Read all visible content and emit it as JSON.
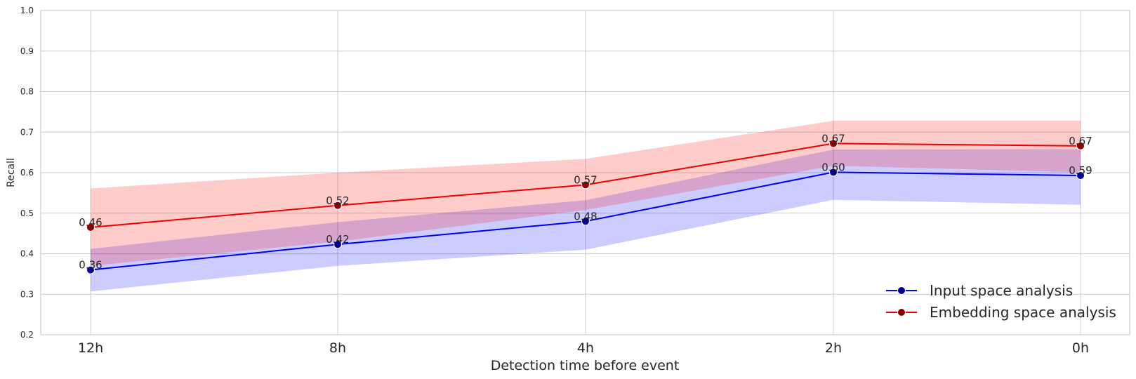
{
  "chart_data": {
    "type": "line",
    "categories": [
      "12h",
      "8h",
      "4h",
      "2h",
      "0h"
    ],
    "xlabel": "Detection time before event",
    "ylabel": "Recall",
    "ylim": [
      0.2,
      1.0
    ],
    "yticks": [
      "0.2",
      "0.3",
      "0.4",
      "0.5",
      "0.6",
      "0.7",
      "0.8",
      "0.9",
      "1.0"
    ],
    "grid": true,
    "legend_position": "bottom-right",
    "series": [
      {
        "name": "Input space analysis",
        "values": [
          0.36,
          0.423,
          0.48,
          0.601,
          0.593
        ],
        "labels": [
          "0.36",
          "0.42",
          "0.48",
          "0.60",
          "0.59"
        ],
        "band_low": [
          0.307,
          0.37,
          0.41,
          0.533,
          0.521
        ],
        "band_high": [
          0.412,
          0.478,
          0.532,
          0.657,
          0.658
        ],
        "line_color": "#0000ee",
        "marker_color": "#00008b",
        "band_color": "#0000ff"
      },
      {
        "name": "Embedding space analysis",
        "values": [
          0.465,
          0.519,
          0.57,
          0.672,
          0.666
        ],
        "labels": [
          "0.46",
          "0.52",
          "0.57",
          "0.67",
          "0.67"
        ],
        "band_low": [
          0.37,
          0.43,
          0.508,
          0.617,
          0.601
        ],
        "band_high": [
          0.561,
          0.6,
          0.634,
          0.728,
          0.728
        ],
        "line_color": "#ee0000",
        "marker_color": "#8b0000",
        "band_color": "#ff0000"
      }
    ]
  }
}
